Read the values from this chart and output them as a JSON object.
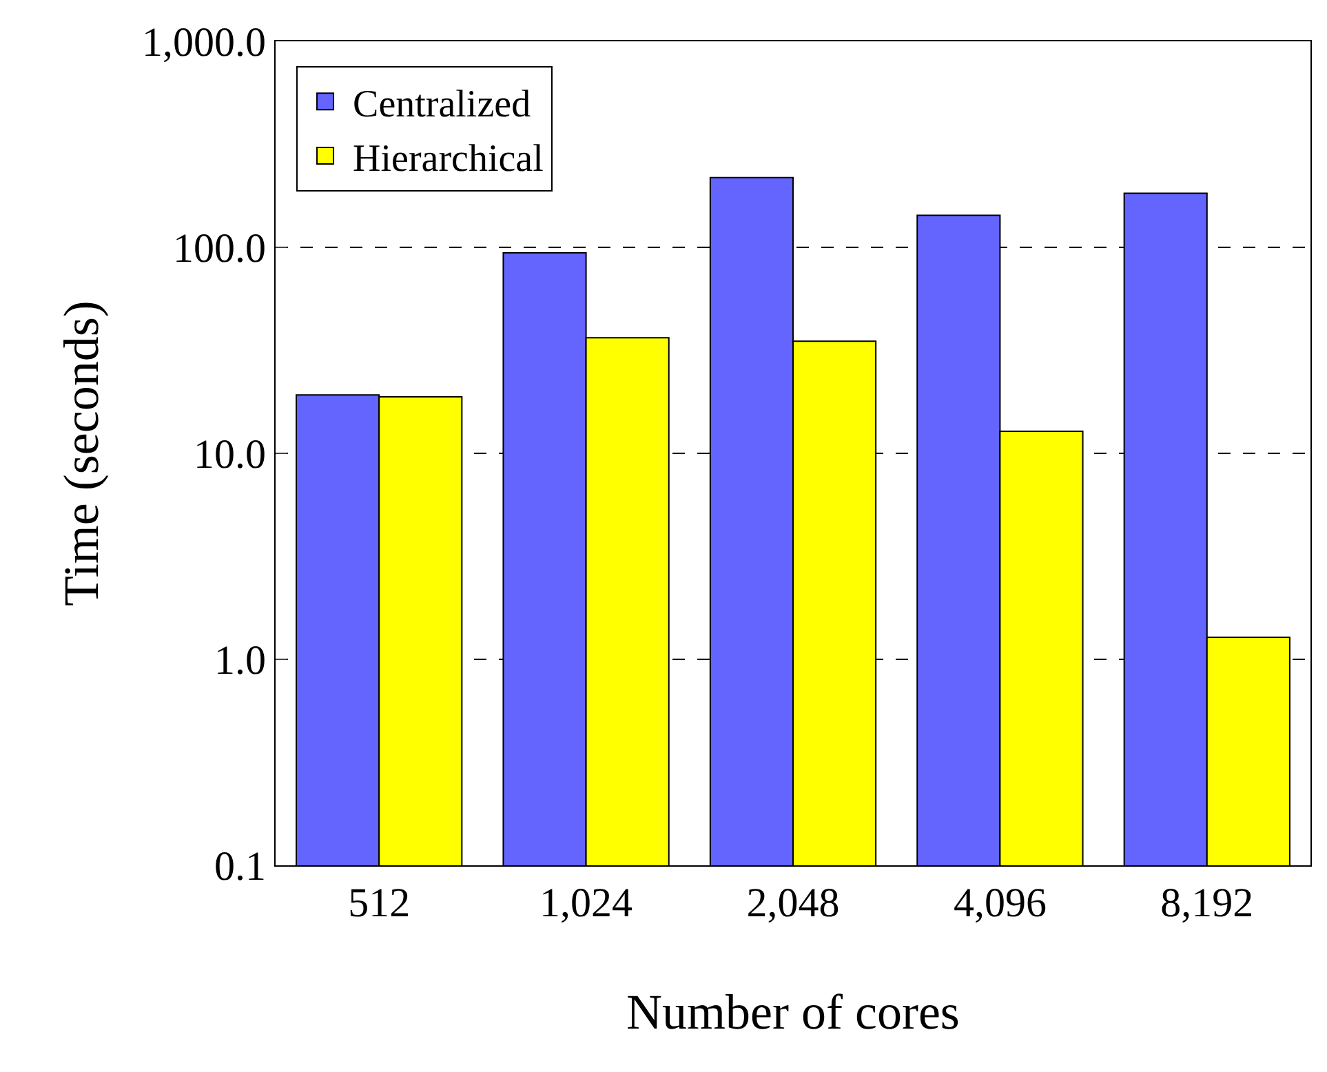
{
  "chart_data": {
    "type": "bar",
    "xlabel": "Number of cores",
    "ylabel": "Time (seconds)",
    "categories": [
      "512",
      "1,024",
      "2,048",
      "4,096",
      "8,192"
    ],
    "series": [
      {
        "name": "Centralized",
        "color": "#6464ff",
        "values": [
          19.2,
          94,
          218,
          143,
          183
        ]
      },
      {
        "name": "Hierarchical",
        "color": "#ffff00",
        "values": [
          18.8,
          36.4,
          35,
          12.8,
          1.28
        ]
      }
    ],
    "log": "y",
    "ylim": [
      0.1,
      1000
    ],
    "yticks": [
      {
        "value": 0.1,
        "label": "0.1"
      },
      {
        "value": 1,
        "label": "1.0"
      },
      {
        "value": 10,
        "label": "10.0"
      },
      {
        "value": 100,
        "label": "100.0"
      },
      {
        "value": 1000,
        "label": "1,000.0"
      }
    ],
    "grid": "y",
    "legend": "top left"
  }
}
